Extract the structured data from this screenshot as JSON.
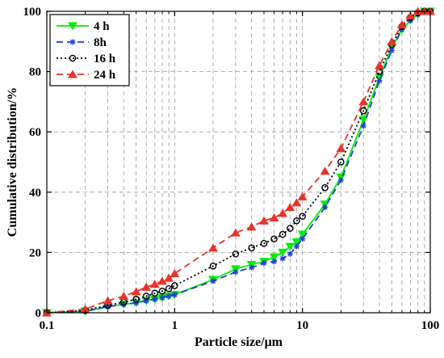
{
  "chart_data": {
    "type": "line",
    "xlabel": "Particle size/μm",
    "ylabel": "Cumulative distribution/%",
    "xscale": "log",
    "xlim": [
      0.1,
      100
    ],
    "ylim": [
      0,
      100
    ],
    "grid": "on (dashed)",
    "legend_position": "top-left",
    "x_tick_labels": [
      "0.1",
      "1",
      "10",
      "100"
    ],
    "y_tick_labels": [
      "0",
      "20",
      "40",
      "60",
      "80",
      "100"
    ],
    "series": [
      {
        "name": "4 h",
        "color": "#00ee00",
        "line_style": "solid",
        "marker": "triangle-down",
        "x": [
          0.1,
          0.2,
          0.3,
          0.4,
          0.5,
          0.6,
          0.7,
          0.8,
          0.9,
          1,
          2,
          3,
          4,
          5,
          6,
          7,
          8,
          9,
          10,
          15,
          20,
          30,
          40,
          50,
          60,
          70,
          80,
          90,
          100
        ],
        "y": [
          0,
          0.5,
          2,
          2.8,
          3.3,
          4,
          4.5,
          5,
          5.5,
          6,
          11,
          14.5,
          16,
          17,
          18.5,
          20,
          22,
          23.5,
          26,
          36,
          45,
          64,
          78,
          88,
          94,
          97,
          99,
          100,
          100
        ]
      },
      {
        "name": "8h",
        "color": "#1f3fd6",
        "line_style": "dashed",
        "marker": "star",
        "x": [
          0.1,
          0.2,
          0.3,
          0.4,
          0.5,
          0.6,
          0.7,
          0.8,
          0.9,
          1,
          2,
          3,
          4,
          5,
          6,
          7,
          8,
          9,
          10,
          15,
          20,
          30,
          40,
          50,
          60,
          70,
          80,
          90,
          100
        ],
        "y": [
          0,
          0.5,
          2,
          2.8,
          3.3,
          4,
          4.5,
          5,
          5.5,
          6,
          10.5,
          13.5,
          15,
          16.5,
          17,
          18,
          19.5,
          22,
          24.5,
          35,
          44,
          62,
          77,
          87,
          94,
          97,
          99,
          100,
          100
        ]
      },
      {
        "name": "16 h",
        "color": "#000000",
        "line_style": "dotted",
        "marker": "circle",
        "x": [
          0.1,
          0.2,
          0.3,
          0.4,
          0.5,
          0.6,
          0.7,
          0.8,
          0.9,
          1,
          2,
          3,
          4,
          5,
          6,
          7,
          8,
          9,
          10,
          15,
          20,
          30,
          40,
          50,
          60,
          70,
          80,
          90,
          100
        ],
        "y": [
          0,
          0.8,
          2.5,
          3.5,
          4.5,
          5.5,
          6.5,
          7.2,
          8,
          9,
          15.5,
          19.5,
          21.5,
          23,
          24.5,
          26,
          28,
          30.5,
          32,
          41.5,
          50,
          67,
          80,
          89,
          95,
          98,
          99.5,
          100,
          100
        ]
      },
      {
        "name": "24 h",
        "color": "#e8322a",
        "line_style": "dashed",
        "marker": "triangle-up",
        "x": [
          0.1,
          0.2,
          0.3,
          0.4,
          0.5,
          0.6,
          0.7,
          0.8,
          0.9,
          1,
          2,
          3,
          4,
          5,
          6,
          7,
          8,
          9,
          10,
          15,
          20,
          30,
          40,
          50,
          60,
          70,
          80,
          90,
          100
        ],
        "y": [
          0,
          1.2,
          4,
          5.5,
          7,
          8.5,
          9.5,
          10.5,
          11.5,
          13,
          21.5,
          26.5,
          28.5,
          30.5,
          31.5,
          33,
          35,
          36.5,
          38.5,
          47,
          54.5,
          70,
          82,
          90,
          95.5,
          98.5,
          100,
          100,
          100
        ]
      }
    ]
  }
}
